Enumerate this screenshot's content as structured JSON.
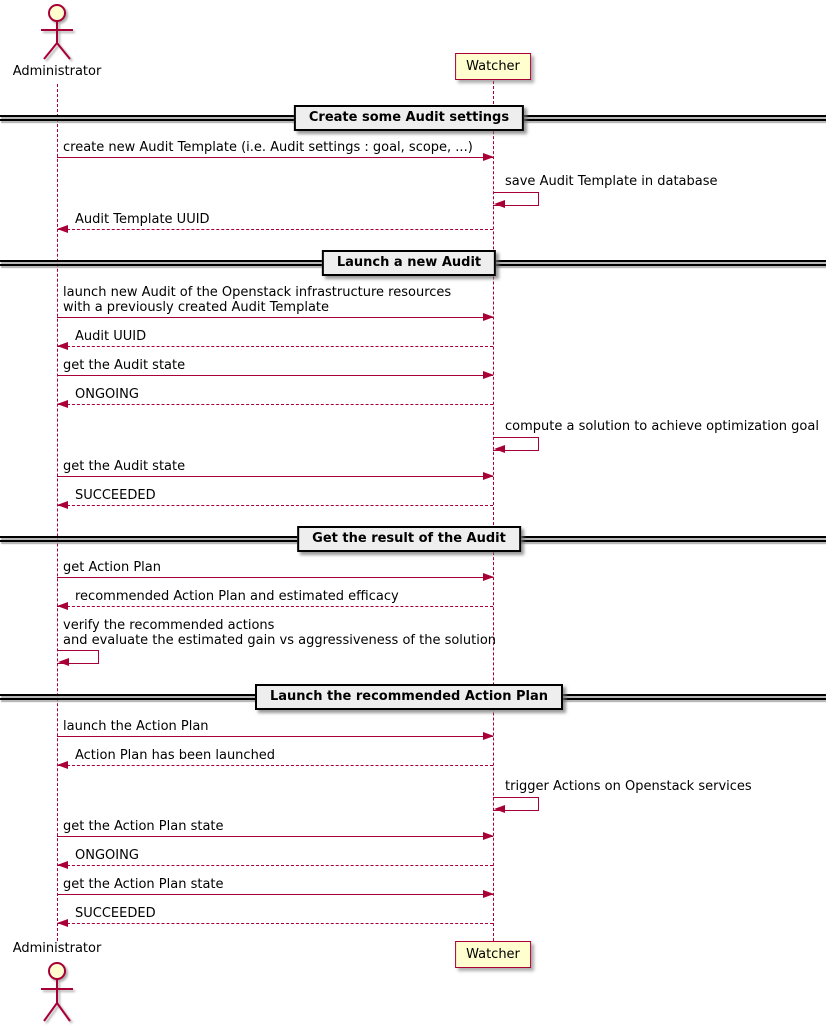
{
  "diagram": {
    "type": "sequence-diagram",
    "participants": [
      {
        "name": "Administrator",
        "kind": "actor"
      },
      {
        "name": "Watcher",
        "kind": "participant"
      }
    ],
    "colors": {
      "stroke": "#A80036",
      "participant_fill": "#FEFECE",
      "divider_fill": "#EEEEEE",
      "divider_border": "#000000",
      "text": "#000000"
    },
    "rows": [
      {
        "type": "divider",
        "label": "Create some Audit settings"
      },
      {
        "type": "message",
        "from": "Administrator",
        "to": "Watcher",
        "style": "solid",
        "lines": [
          "create new Audit Template (i.e. Audit settings : goal, scope, ...)"
        ]
      },
      {
        "type": "self",
        "on": "Watcher",
        "lines": [
          "save Audit Template in database"
        ]
      },
      {
        "type": "message",
        "from": "Watcher",
        "to": "Administrator",
        "style": "return",
        "lines": [
          "Audit Template UUID"
        ]
      },
      {
        "type": "divider",
        "label": "Launch a new Audit"
      },
      {
        "type": "message",
        "from": "Administrator",
        "to": "Watcher",
        "style": "solid",
        "lines": [
          "launch new Audit of the Openstack infrastructure resources",
          "with a previously created Audit Template"
        ]
      },
      {
        "type": "message",
        "from": "Watcher",
        "to": "Administrator",
        "style": "return",
        "lines": [
          "Audit UUID"
        ]
      },
      {
        "type": "message",
        "from": "Administrator",
        "to": "Watcher",
        "style": "solid",
        "lines": [
          "get the Audit state"
        ]
      },
      {
        "type": "message",
        "from": "Watcher",
        "to": "Administrator",
        "style": "return",
        "lines": [
          "ONGOING"
        ]
      },
      {
        "type": "self",
        "on": "Watcher",
        "lines": [
          "compute a solution to achieve optimization goal"
        ]
      },
      {
        "type": "message",
        "from": "Administrator",
        "to": "Watcher",
        "style": "solid",
        "lines": [
          "get the Audit state"
        ]
      },
      {
        "type": "message",
        "from": "Watcher",
        "to": "Administrator",
        "style": "return",
        "lines": [
          "SUCCEEDED"
        ]
      },
      {
        "type": "divider",
        "label": "Get the result of the Audit"
      },
      {
        "type": "message",
        "from": "Administrator",
        "to": "Watcher",
        "style": "solid",
        "lines": [
          "get Action Plan"
        ]
      },
      {
        "type": "message",
        "from": "Watcher",
        "to": "Administrator",
        "style": "return",
        "lines": [
          "recommended Action Plan and estimated efficacy"
        ]
      },
      {
        "type": "self",
        "on": "Administrator",
        "lines": [
          "verify the recommended actions",
          "and evaluate the estimated gain vs aggressiveness of the solution"
        ]
      },
      {
        "type": "divider",
        "label": "Launch the recommended Action Plan"
      },
      {
        "type": "message",
        "from": "Administrator",
        "to": "Watcher",
        "style": "solid",
        "lines": [
          "launch the Action Plan"
        ]
      },
      {
        "type": "message",
        "from": "Watcher",
        "to": "Administrator",
        "style": "return",
        "lines": [
          "Action Plan has been launched"
        ]
      },
      {
        "type": "self",
        "on": "Watcher",
        "lines": [
          "trigger Actions on Openstack services"
        ]
      },
      {
        "type": "message",
        "from": "Administrator",
        "to": "Watcher",
        "style": "solid",
        "lines": [
          "get the Action Plan state"
        ]
      },
      {
        "type": "message",
        "from": "Watcher",
        "to": "Administrator",
        "style": "return",
        "lines": [
          "ONGOING"
        ]
      },
      {
        "type": "message",
        "from": "Administrator",
        "to": "Watcher",
        "style": "solid",
        "lines": [
          "get the Action Plan state"
        ]
      },
      {
        "type": "message",
        "from": "Watcher",
        "to": "Administrator",
        "style": "return",
        "lines": [
          "SUCCEEDED"
        ]
      }
    ]
  }
}
